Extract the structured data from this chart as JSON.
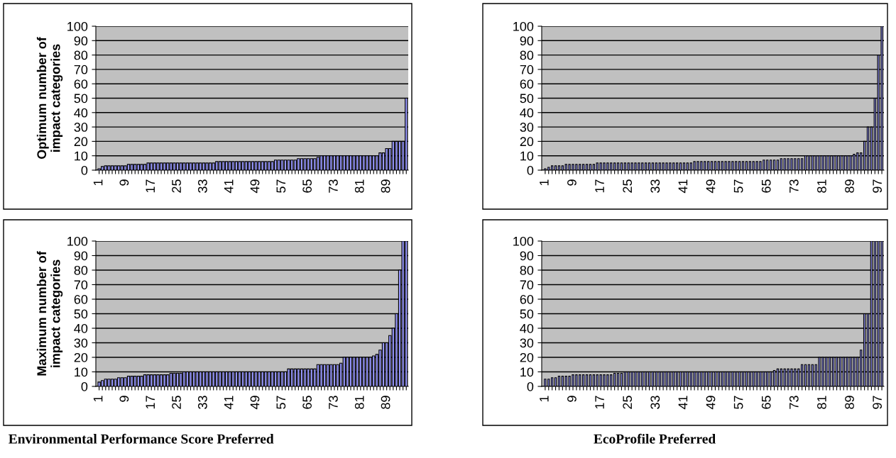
{
  "chart_data": [
    {
      "type": "bar",
      "ylabel": "Optimum number of impact categories",
      "categories": [
        "1",
        null,
        null,
        null,
        null,
        null,
        null,
        null,
        "9",
        null,
        null,
        null,
        null,
        null,
        null,
        null,
        "17",
        null,
        null,
        null,
        null,
        null,
        null,
        null,
        "25",
        null,
        null,
        null,
        null,
        null,
        null,
        null,
        "33",
        null,
        null,
        null,
        null,
        null,
        null,
        null,
        "41",
        null,
        null,
        null,
        null,
        null,
        null,
        null,
        "49",
        null,
        null,
        null,
        null,
        null,
        null,
        null,
        "57",
        null,
        null,
        null,
        null,
        null,
        null,
        null,
        "65",
        null,
        null,
        null,
        null,
        null,
        null,
        null,
        "73",
        null,
        null,
        null,
        null,
        null,
        null,
        null,
        "81",
        null,
        null,
        null,
        null,
        null,
        null,
        null,
        "89",
        null,
        null,
        null,
        null,
        null,
        null
      ],
      "color": "#9999ff",
      "ylim": [
        0,
        100
      ],
      "yticks": [
        0,
        10,
        20,
        30,
        40,
        50,
        60,
        70,
        80,
        90,
        100
      ],
      "grid": "y",
      "values": [
        1,
        2.5,
        3,
        3,
        3,
        3,
        3,
        3,
        3,
        4,
        4,
        4,
        4,
        4,
        4,
        5,
        5,
        5,
        5,
        5,
        5,
        5,
        5,
        5,
        5,
        5,
        5,
        5,
        5,
        5,
        5,
        5,
        5,
        5,
        5,
        5,
        6,
        6,
        6,
        6,
        6,
        6,
        6,
        6,
        6,
        6,
        6,
        6,
        6,
        6,
        6,
        6,
        6,
        6,
        7,
        7,
        7,
        7,
        7,
        7,
        7,
        8,
        8,
        8,
        8,
        8,
        8,
        9,
        10,
        10,
        10,
        10,
        10,
        10,
        10,
        10,
        10,
        10,
        10,
        10,
        10,
        10,
        10,
        10,
        10,
        10,
        12,
        12,
        15,
        15,
        20,
        20,
        20,
        20,
        50
      ]
    },
    {
      "type": "bar",
      "categories": [
        "1",
        null,
        null,
        null,
        null,
        null,
        null,
        null,
        "9",
        null,
        null,
        null,
        null,
        null,
        null,
        null,
        "17",
        null,
        null,
        null,
        null,
        null,
        null,
        null,
        "25",
        null,
        null,
        null,
        null,
        null,
        null,
        null,
        "33",
        null,
        null,
        null,
        null,
        null,
        null,
        null,
        "41",
        null,
        null,
        null,
        null,
        null,
        null,
        null,
        "49",
        null,
        null,
        null,
        null,
        null,
        null,
        null,
        "57",
        null,
        null,
        null,
        null,
        null,
        null,
        null,
        "65",
        null,
        null,
        null,
        null,
        null,
        null,
        null,
        "73",
        null,
        null,
        null,
        null,
        null,
        null,
        null,
        "81",
        null,
        null,
        null,
        null,
        null,
        null,
        null,
        "89",
        null,
        null,
        null,
        null,
        null,
        null,
        null,
        "97",
        null
      ],
      "color": "#9999ff",
      "ylim": [
        0,
        100
      ],
      "yticks": [
        0,
        10,
        20,
        30,
        40,
        50,
        60,
        70,
        80,
        90,
        100
      ],
      "grid": "y",
      "values": [
        1,
        2,
        3,
        3,
        3,
        3,
        4,
        4,
        4,
        4,
        4,
        4,
        4,
        4,
        4,
        5,
        5,
        5,
        5,
        5,
        5,
        5,
        5,
        5,
        5,
        5,
        5,
        5,
        5,
        5,
        5,
        5,
        5,
        5,
        5,
        5,
        5,
        5,
        5,
        5,
        5,
        5,
        5,
        6,
        6,
        6,
        6,
        6,
        6,
        6,
        6,
        6,
        6,
        6,
        6,
        6,
        6,
        6,
        6,
        6,
        6,
        6,
        6,
        7,
        7,
        7,
        7,
        7,
        8,
        8,
        8,
        8,
        8,
        8,
        8,
        10,
        10,
        10,
        10,
        10,
        10,
        10,
        10,
        10,
        10,
        10,
        10,
        10,
        10,
        11,
        12,
        12,
        20,
        30,
        30,
        50,
        80,
        100
      ]
    },
    {
      "type": "bar",
      "ylabel": "Maximum number of impact categories",
      "categories": [
        "1",
        null,
        null,
        null,
        null,
        null,
        null,
        null,
        "9",
        null,
        null,
        null,
        null,
        null,
        null,
        null,
        "17",
        null,
        null,
        null,
        null,
        null,
        null,
        null,
        "25",
        null,
        null,
        null,
        null,
        null,
        null,
        null,
        "33",
        null,
        null,
        null,
        null,
        null,
        null,
        null,
        "41",
        null,
        null,
        null,
        null,
        null,
        null,
        null,
        "49",
        null,
        null,
        null,
        null,
        null,
        null,
        null,
        "57",
        null,
        null,
        null,
        null,
        null,
        null,
        null,
        "65",
        null,
        null,
        null,
        null,
        null,
        null,
        null,
        "73",
        null,
        null,
        null,
        null,
        null,
        null,
        null,
        "81",
        null,
        null,
        null,
        null,
        null,
        null,
        null,
        "89",
        null,
        null,
        null,
        null,
        null,
        null
      ],
      "color": "#9999ff",
      "ylim": [
        0,
        100
      ],
      "yticks": [
        0,
        10,
        20,
        30,
        40,
        50,
        60,
        70,
        80,
        90,
        100
      ],
      "grid": "y",
      "annotations": [
        "Environmental Performance Score Preferred"
      ],
      "values": [
        3,
        4,
        5,
        5,
        5,
        5,
        6,
        6,
        6,
        7,
        7,
        7,
        7,
        7,
        8,
        8,
        8,
        8,
        8,
        8,
        8,
        8,
        9,
        9,
        9,
        9,
        10,
        10,
        10,
        10,
        10,
        10,
        10,
        10,
        10,
        10,
        10,
        10,
        10,
        10,
        10,
        10,
        10,
        10,
        10,
        10,
        10,
        10,
        10,
        10,
        10,
        10,
        10,
        10,
        10,
        10,
        10,
        10,
        12,
        12,
        12,
        12,
        12,
        12,
        12,
        12,
        12,
        15,
        15,
        15,
        15,
        15,
        15,
        15,
        16,
        20,
        20,
        20,
        20,
        20,
        20,
        20,
        20,
        20,
        21,
        22,
        25,
        30,
        30,
        35,
        40,
        50,
        80,
        100,
        100
      ]
    },
    {
      "type": "bar",
      "categories": [
        "1",
        null,
        null,
        null,
        null,
        null,
        null,
        null,
        "9",
        null,
        null,
        null,
        null,
        null,
        null,
        null,
        "17",
        null,
        null,
        null,
        null,
        null,
        null,
        null,
        "25",
        null,
        null,
        null,
        null,
        null,
        null,
        null,
        "33",
        null,
        null,
        null,
        null,
        null,
        null,
        null,
        "41",
        null,
        null,
        null,
        null,
        null,
        null,
        null,
        "49",
        null,
        null,
        null,
        null,
        null,
        null,
        null,
        "57",
        null,
        null,
        null,
        null,
        null,
        null,
        null,
        "65",
        null,
        null,
        null,
        null,
        null,
        null,
        null,
        "73",
        null,
        null,
        null,
        null,
        null,
        null,
        null,
        "81",
        null,
        null,
        null,
        null,
        null,
        null,
        null,
        "89",
        null,
        null,
        null,
        null,
        null,
        null,
        null,
        "97",
        null
      ],
      "color": "#9999ff",
      "ylim": [
        0,
        100
      ],
      "yticks": [
        0,
        10,
        20,
        30,
        40,
        50,
        60,
        70,
        80,
        90,
        100
      ],
      "grid": "y",
      "annotations": [
        "EcoProfile Preferred"
      ],
      "values": [
        5,
        5,
        6,
        6,
        7,
        7,
        7,
        7,
        8,
        8,
        8,
        8,
        8,
        8,
        8,
        8,
        8,
        8,
        8,
        8,
        9,
        9,
        9,
        10,
        10,
        10,
        10,
        10,
        10,
        10,
        10,
        10,
        10,
        10,
        10,
        10,
        10,
        10,
        10,
        10,
        10,
        10,
        10,
        10,
        10,
        10,
        10,
        10,
        10,
        10,
        10,
        10,
        10,
        10,
        10,
        10,
        10,
        10,
        10,
        10,
        10,
        10,
        10,
        10,
        10,
        10,
        11,
        12,
        12,
        12,
        12,
        12,
        12,
        12,
        15,
        15,
        15,
        15,
        15,
        20,
        20,
        20,
        20,
        20,
        20,
        20,
        20,
        20,
        20,
        20,
        20,
        25,
        50,
        50,
        100,
        100,
        100,
        100
      ]
    }
  ]
}
